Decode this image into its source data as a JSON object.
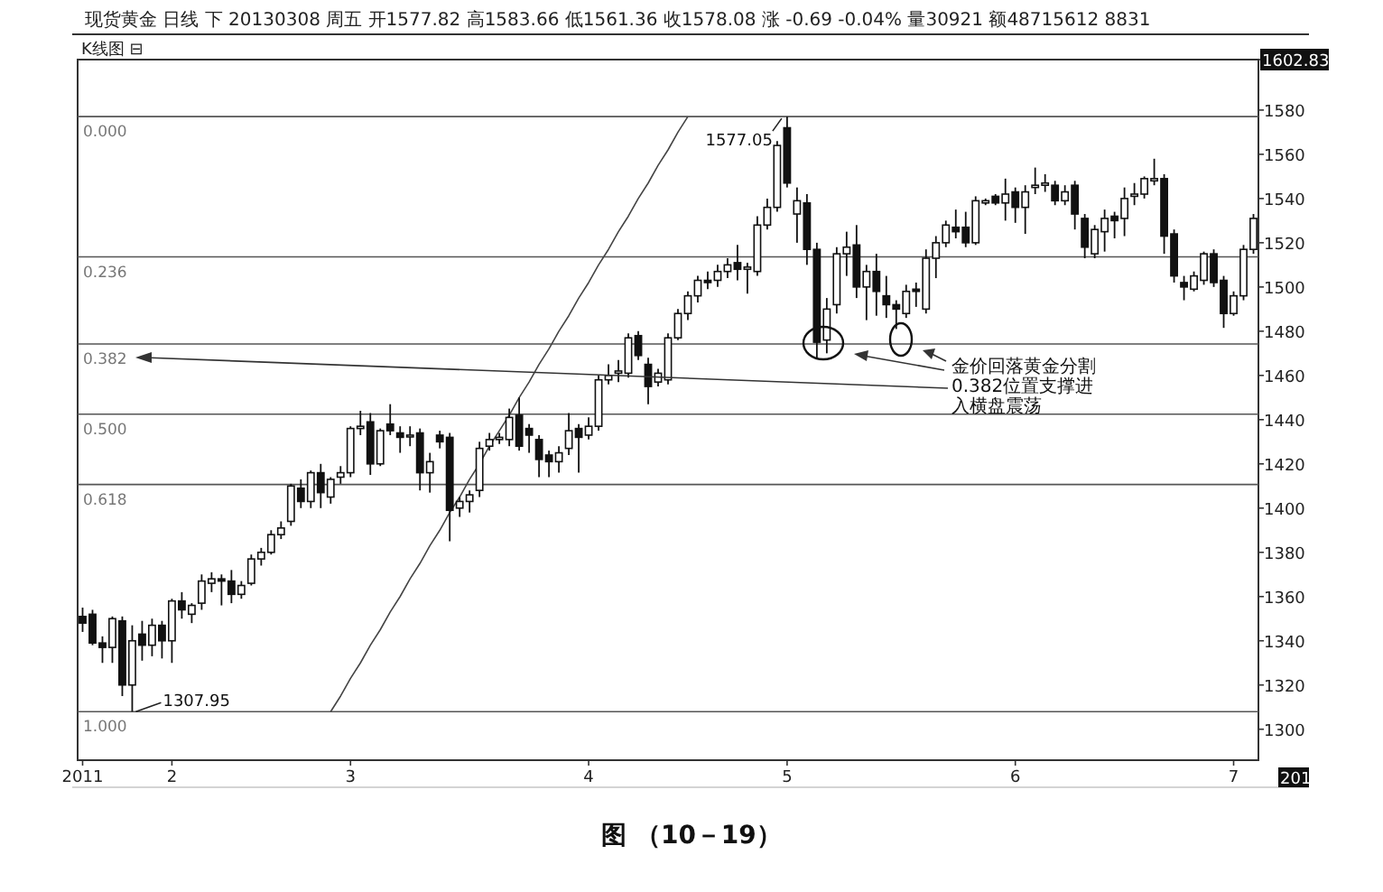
{
  "chart_data": {
    "type": "candlestick",
    "title": "现货黄金 日线 下 20130308 周五 开1577.82 高1583.66 低1561.36 收1578.08 涨 -0.69 -0.04% 量30921 额48715612 8831",
    "subtitle": "K线图 ⊟",
    "categories": [
      "2011",
      null,
      null,
      null,
      null,
      null,
      null,
      null,
      null,
      "2",
      null,
      null,
      null,
      null,
      null,
      null,
      null,
      null,
      null,
      null,
      null,
      null,
      null,
      null,
      null,
      null,
      null,
      "3",
      null,
      null,
      null,
      null,
      null,
      null,
      null,
      null,
      null,
      null,
      null,
      null,
      null,
      null,
      null,
      null,
      null,
      null,
      null,
      null,
      null,
      null,
      null,
      "4",
      null,
      null,
      null,
      null,
      null,
      null,
      null,
      null,
      null,
      null,
      null,
      null,
      null,
      null,
      null,
      null,
      null,
      null,
      null,
      "5",
      null,
      null,
      null,
      null,
      null,
      null,
      null,
      null,
      null,
      null,
      null,
      null,
      null,
      null,
      null,
      null,
      null,
      null,
      null,
      null,
      null,
      null,
      "6",
      null,
      null,
      null,
      null,
      null,
      null,
      null,
      null,
      null,
      null,
      null,
      null,
      null,
      null,
      null,
      null,
      null,
      null,
      null,
      null,
      null,
      "7",
      null,
      null
    ],
    "ohlc": [
      [
        1351,
        1355,
        1344,
        1348
      ],
      [
        1352,
        1354,
        1338,
        1339
      ],
      [
        1339,
        1342,
        1330,
        1337
      ],
      [
        1337,
        1351,
        1330,
        1350
      ],
      [
        1349,
        1351,
        1315,
        1320
      ],
      [
        1320,
        1347,
        1307.95,
        1340
      ],
      [
        1343,
        1349,
        1331,
        1338
      ],
      [
        1338,
        1350,
        1333,
        1347
      ],
      [
        1347,
        1349,
        1332,
        1340
      ],
      [
        1340,
        1359,
        1330,
        1358
      ],
      [
        1358,
        1362,
        1350,
        1354
      ],
      [
        1352,
        1357,
        1348,
        1356
      ],
      [
        1357,
        1370,
        1354,
        1367
      ],
      [
        1366,
        1371,
        1362,
        1368
      ],
      [
        1368,
        1370,
        1356,
        1367
      ],
      [
        1367,
        1372,
        1357,
        1361
      ],
      [
        1361,
        1367,
        1359,
        1365
      ],
      [
        1366,
        1379,
        1365,
        1377
      ],
      [
        1377,
        1382,
        1374,
        1380
      ],
      [
        1380,
        1390,
        1379,
        1388
      ],
      [
        1388,
        1394,
        1386,
        1391
      ],
      [
        1394,
        1411,
        1392,
        1410
      ],
      [
        1409,
        1413,
        1400,
        1403
      ],
      [
        1403,
        1417,
        1400,
        1416
      ],
      [
        1416,
        1420,
        1400,
        1407
      ],
      [
        1405,
        1414,
        1402,
        1413
      ],
      [
        1414,
        1419,
        1411,
        1416
      ],
      [
        1416,
        1437,
        1414,
        1436
      ],
      [
        1436,
        1444,
        1433,
        1437
      ],
      [
        1439,
        1443,
        1415,
        1420
      ],
      [
        1420,
        1436,
        1419,
        1435
      ],
      [
        1438,
        1447,
        1433,
        1435
      ],
      [
        1434,
        1437,
        1425,
        1432
      ],
      [
        1433,
        1437,
        1428,
        1433
      ],
      [
        1434,
        1436,
        1408,
        1416
      ],
      [
        1416,
        1425,
        1407,
        1421
      ],
      [
        1433,
        1435,
        1427,
        1430
      ],
      [
        1432,
        1434,
        1385,
        1399
      ],
      [
        1400,
        1405,
        1396,
        1403
      ],
      [
        1403,
        1408,
        1398,
        1406
      ],
      [
        1408,
        1430,
        1405,
        1427
      ],
      [
        1428,
        1434,
        1426,
        1431
      ],
      [
        1431,
        1434,
        1429,
        1432
      ],
      [
        1431,
        1445,
        1428,
        1441
      ],
      [
        1442,
        1450,
        1426,
        1428
      ],
      [
        1436,
        1438,
        1425,
        1433
      ],
      [
        1431,
        1433,
        1414,
        1422
      ],
      [
        1424,
        1426,
        1414,
        1421
      ],
      [
        1421,
        1428,
        1416,
        1425
      ],
      [
        1427,
        1443,
        1424,
        1435
      ],
      [
        1436,
        1438,
        1416,
        1432
      ],
      [
        1433,
        1441,
        1431,
        1437
      ],
      [
        1437,
        1460,
        1435,
        1458
      ],
      [
        1458,
        1465,
        1456,
        1460
      ],
      [
        1461,
        1467,
        1457,
        1462
      ],
      [
        1461,
        1479,
        1459,
        1477
      ],
      [
        1478,
        1480,
        1467,
        1469
      ],
      [
        1465,
        1468,
        1447,
        1455
      ],
      [
        1457,
        1463,
        1455,
        1461
      ],
      [
        1458,
        1479,
        1456,
        1477
      ],
      [
        1477,
        1490,
        1476,
        1488
      ],
      [
        1488,
        1498,
        1485,
        1496
      ],
      [
        1496,
        1505,
        1493,
        1503
      ],
      [
        1503,
        1507,
        1499,
        1502
      ],
      [
        1503,
        1510,
        1500,
        1507
      ],
      [
        1507,
        1513,
        1504,
        1510
      ],
      [
        1511,
        1519,
        1503,
        1508
      ],
      [
        1508,
        1511,
        1497,
        1509
      ],
      [
        1507,
        1532,
        1505,
        1528
      ],
      [
        1528,
        1540,
        1526,
        1536
      ],
      [
        1536,
        1566,
        1534,
        1564
      ],
      [
        1572,
        1577.05,
        1545,
        1547
      ],
      [
        1533,
        1545,
        1520,
        1539
      ],
      [
        1538,
        1542,
        1510,
        1517
      ],
      [
        1517,
        1520,
        1468,
        1475
      ],
      [
        1476,
        1495,
        1470,
        1490
      ],
      [
        1492,
        1518,
        1488,
        1515
      ],
      [
        1515,
        1525,
        1505,
        1518
      ],
      [
        1519,
        1528,
        1495,
        1500
      ],
      [
        1500,
        1510,
        1485,
        1507
      ],
      [
        1507,
        1515,
        1487,
        1498
      ],
      [
        1496,
        1505,
        1486,
        1492
      ],
      [
        1492,
        1494,
        1481,
        1490
      ],
      [
        1488,
        1501,
        1486,
        1498
      ],
      [
        1499,
        1502,
        1491,
        1498
      ],
      [
        1490,
        1517,
        1488,
        1513
      ],
      [
        1513,
        1523,
        1504,
        1520
      ],
      [
        1520,
        1530,
        1518,
        1528
      ],
      [
        1527,
        1535,
        1522,
        1525
      ],
      [
        1527,
        1534,
        1518,
        1520
      ],
      [
        1520,
        1541,
        1519,
        1539
      ],
      [
        1538,
        1540,
        1537,
        1539
      ],
      [
        1541,
        1542,
        1537,
        1538
      ],
      [
        1538,
        1549,
        1530,
        1542
      ],
      [
        1543,
        1545,
        1529,
        1536
      ],
      [
        1536,
        1546,
        1524,
        1543
      ],
      [
        1545,
        1554,
        1542,
        1546
      ],
      [
        1546,
        1551,
        1543,
        1547
      ],
      [
        1546,
        1548,
        1537,
        1539
      ],
      [
        1539,
        1546,
        1537,
        1543
      ],
      [
        1546,
        1548,
        1526,
        1533
      ],
      [
        1531,
        1533,
        1513,
        1518
      ],
      [
        1515,
        1528,
        1513,
        1526
      ],
      [
        1525,
        1535,
        1516,
        1531
      ],
      [
        1532,
        1534,
        1522,
        1530
      ],
      [
        1531,
        1545,
        1523,
        1540
      ],
      [
        1541,
        1547,
        1537,
        1542
      ],
      [
        1542,
        1550,
        1540,
        1549
      ],
      [
        1548,
        1558,
        1546,
        1549
      ],
      [
        1549,
        1551,
        1515,
        1523
      ],
      [
        1524,
        1526,
        1502,
        1505
      ],
      [
        1502,
        1505,
        1494,
        1500
      ],
      [
        1499,
        1507,
        1498,
        1505
      ],
      [
        1503,
        1516,
        1501,
        1515
      ],
      [
        1515,
        1517,
        1500,
        1502
      ],
      [
        1503,
        1505,
        1481.5,
        1488
      ],
      [
        1488,
        1498,
        1487,
        1496
      ],
      [
        1496,
        1519,
        1494,
        1517
      ],
      [
        1517,
        1533,
        1515,
        1531
      ]
    ],
    "series": [
      {
        "type": "line",
        "color": "#444444",
        "values": [
          null,
          null,
          null,
          null,
          null,
          null,
          null,
          null,
          null,
          null,
          null,
          null,
          null,
          null,
          null,
          null,
          null,
          null,
          null,
          null,
          null,
          null,
          null,
          null,
          null,
          1307.95,
          1315,
          1323,
          1330,
          1338,
          1345,
          1353,
          1360,
          1368,
          1375,
          1383,
          1390,
          1398,
          1405,
          1413,
          1420,
          1428,
          1435,
          1442,
          1450,
          1457,
          1465,
          1472,
          1480,
          1487,
          1495,
          1502,
          1510,
          1517,
          1525,
          1532,
          1540,
          1547,
          1555,
          1562,
          1570,
          1577.05,
          null,
          null,
          null,
          null,
          null,
          null,
          null,
          null,
          null,
          null,
          null,
          null,
          null,
          null,
          null,
          null,
          null,
          null,
          null,
          null,
          null,
          null,
          null,
          null,
          null,
          null,
          null,
          null,
          null,
          null,
          null,
          null,
          null,
          null,
          null,
          null,
          null,
          null,
          null,
          null,
          null,
          null,
          null,
          null,
          null,
          null,
          null,
          null,
          null,
          null,
          null,
          null,
          null,
          null,
          null,
          null,
          null
        ]
      }
    ],
    "ylim": [
      1286,
      1602.83
    ],
    "yticks": [
      1300,
      1320,
      1340,
      1360,
      1380,
      1400,
      1420,
      1440,
      1460,
      1480,
      1500,
      1520,
      1540,
      1560,
      1580,
      {
        "value": 1602.83,
        "label": "1602.83"
      }
    ],
    "ref_lines": [
      {
        "axis": "y",
        "value": 1577.05
      },
      {
        "axis": "y",
        "value": 1513.6
      },
      {
        "axis": "y",
        "value": 1474.2
      },
      {
        "axis": "y",
        "value": 1442.5
      },
      {
        "axis": "y",
        "value": 1410.7
      },
      {
        "axis": "y",
        "value": 1307.95
      }
    ],
    "annotations": [
      {
        "text": "1577.05",
        "y": 1577.05
      },
      {
        "text": "1307.95",
        "y": 1307.95
      },
      {
        "text": "0.000",
        "y": 1577.05
      },
      {
        "text": "0.236",
        "y": 1513.6
      },
      {
        "text": "0.382",
        "y": 1474.2
      },
      {
        "text": "0.500",
        "y": 1442.5
      },
      {
        "text": "0.618",
        "y": 1410.7
      },
      {
        "text": "1.000",
        "y": 1307.95
      },
      "金价回落黄金分割0.382位置支撑进入横盘震荡",
      "图 （10－19）",
      "201"
    ]
  }
}
